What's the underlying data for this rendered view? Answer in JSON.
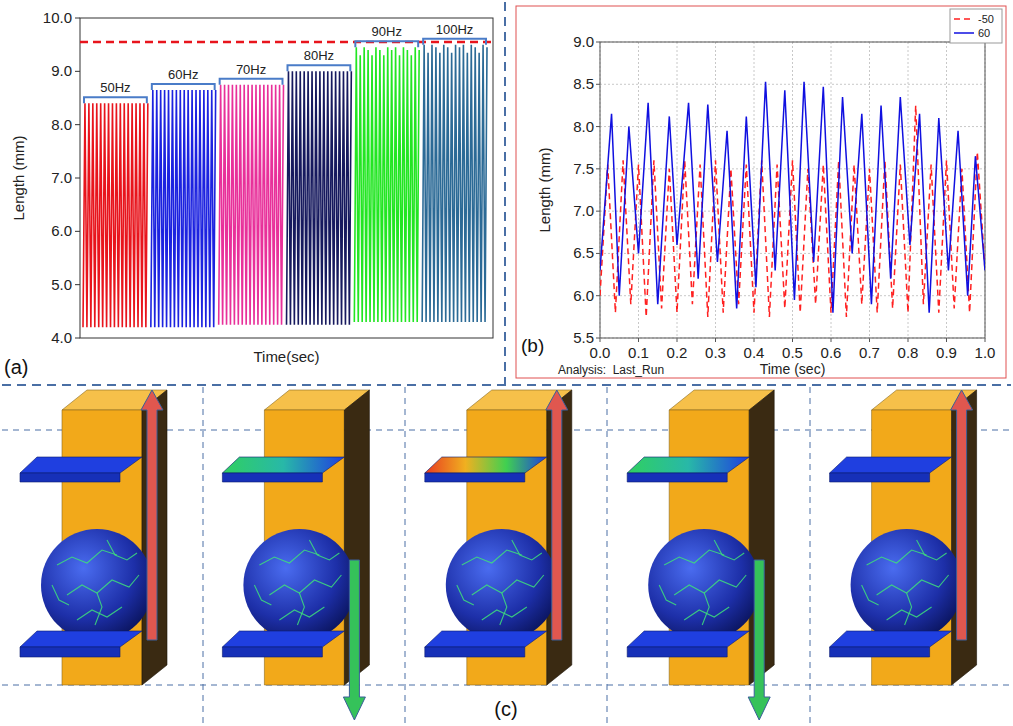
{
  "chart_data": [
    {
      "type": "line",
      "panel_label": "(a)",
      "x_label": "Time(sec)",
      "y_label": "Length (mm)",
      "ylim": [
        4,
        10
      ],
      "yticks": [
        {
          "value": 4,
          "label": "4.0"
        },
        {
          "value": 5,
          "label": "5.0"
        },
        {
          "value": 6,
          "label": "6.0"
        },
        {
          "value": 7,
          "label": "7.0"
        },
        {
          "value": 8,
          "label": "8.0"
        },
        {
          "value": 9,
          "label": "9.0"
        },
        {
          "value": 10,
          "label": "10.0"
        }
      ],
      "tick_labels": "y",
      "grid": false,
      "reference_line": {
        "value": 9.55,
        "color": "#e8141c",
        "line_style": "dashed"
      },
      "series": [
        {
          "name": "50Hz",
          "color": "#e8141c",
          "values": [
            4.2,
            8.4,
            4.2,
            8.4,
            4.2,
            8.4,
            4.2,
            8.4,
            4.2,
            8.4,
            4.2,
            8.4,
            4.2,
            8.4,
            4.2,
            8.4,
            4.2,
            8.4,
            4.2,
            8.4,
            4.2,
            8.4,
            4.2,
            8.4,
            4.2,
            8.4,
            4.2,
            8.4,
            4.2,
            8.4,
            4.2,
            8.4,
            4.2,
            8.4
          ]
        },
        {
          "name": "60Hz",
          "color": "#1c22e0",
          "values": [
            4.2,
            8.65,
            4.2,
            8.65,
            4.2,
            8.65,
            4.2,
            8.65,
            4.2,
            8.65,
            4.2,
            8.65,
            4.2,
            8.65,
            4.2,
            8.65,
            4.2,
            8.65,
            4.2,
            8.65,
            4.2,
            8.65,
            4.2,
            8.65,
            4.2,
            8.65,
            4.2,
            8.65,
            4.2,
            8.65,
            4.2,
            8.65,
            4.2,
            8.65
          ]
        },
        {
          "name": "70Hz",
          "color": "#e8309a",
          "values": [
            4.25,
            8.75,
            4.25,
            8.75,
            4.25,
            8.75,
            4.25,
            8.75,
            4.25,
            8.75,
            4.25,
            8.75,
            4.25,
            8.75,
            4.25,
            8.75,
            4.25,
            8.75,
            4.25,
            8.75,
            4.25,
            8.75,
            4.25,
            8.75,
            4.25,
            8.75,
            4.25,
            8.75,
            4.25,
            8.75,
            4.25,
            8.75,
            4.25,
            8.75
          ]
        },
        {
          "name": "80Hz",
          "color": "#16195e",
          "values": [
            4.25,
            9.0,
            4.25,
            9.0,
            4.25,
            9.0,
            4.25,
            9.0,
            4.25,
            9.0,
            4.25,
            9.0,
            4.25,
            9.0,
            4.25,
            9.0,
            4.25,
            9.0,
            4.25,
            9.0,
            4.25,
            9.0,
            4.25,
            9.0,
            4.25,
            9.0,
            4.25,
            9.0,
            4.25,
            9.0,
            4.25,
            9.0,
            4.25,
            9.0
          ]
        },
        {
          "name": "90Hz",
          "color": "#22e622",
          "values": [
            4.3,
            9.45,
            4.3,
            9.3,
            4.3,
            9.45,
            4.3,
            9.4,
            4.3,
            9.3,
            4.3,
            9.45,
            4.3,
            9.4,
            4.3,
            9.3,
            4.3,
            9.45,
            4.3,
            9.4,
            4.3,
            9.45,
            4.3,
            9.3,
            4.3,
            9.45,
            4.3,
            9.4,
            4.3,
            9.3,
            4.3,
            9.45,
            4.3,
            9.4
          ]
        },
        {
          "name": "100Hz",
          "color": "#2b6a96",
          "values": [
            4.3,
            9.5,
            4.3,
            9.35,
            4.3,
            9.5,
            4.3,
            9.45,
            4.3,
            9.35,
            4.3,
            9.5,
            4.3,
            9.45,
            4.3,
            9.35,
            4.3,
            9.5,
            4.3,
            9.45,
            4.3,
            9.5,
            4.3,
            9.35,
            4.3,
            9.5,
            4.3,
            9.45,
            4.3,
            9.35,
            4.3,
            9.5,
            4.3,
            9.45
          ]
        }
      ]
    },
    {
      "type": "line",
      "panel_label": "(b)",
      "x_label": "Time (sec)",
      "y_label": "Length (mm)",
      "annotations": [
        "Analysis:  Last_Run"
      ],
      "xlim": [
        0,
        1
      ],
      "xticks": [
        {
          "value": 0,
          "label": "0.0"
        },
        0.1,
        0.2,
        0.3,
        0.4,
        0.5,
        0.6,
        0.7,
        0.8,
        0.9,
        {
          "value": 1,
          "label": "1.0"
        }
      ],
      "ylim": [
        5.5,
        9
      ],
      "yticks": [
        5.5,
        {
          "value": 6,
          "label": "6.0"
        },
        6.5,
        {
          "value": 7,
          "label": "7.0"
        },
        7.5,
        {
          "value": 8,
          "label": "8.0"
        },
        8.5,
        {
          "value": 9,
          "label": "9.0"
        }
      ],
      "grid": true,
      "legend": "upper right",
      "series": [
        {
          "name": "-50",
          "color": "#ff2020",
          "line_style": "dashed",
          "x": [
            0,
            0.02,
            0.04,
            0.06,
            0.08,
            0.1,
            0.12,
            0.14,
            0.16,
            0.18,
            0.2,
            0.22,
            0.24,
            0.26,
            0.28,
            0.3,
            0.32,
            0.34,
            0.36,
            0.38,
            0.4,
            0.42,
            0.44,
            0.46,
            0.48,
            0.5,
            0.52,
            0.54,
            0.56,
            0.58,
            0.6,
            0.62,
            0.64,
            0.66,
            0.68,
            0.7,
            0.72,
            0.74,
            0.76,
            0.78,
            0.8,
            0.82,
            0.84,
            0.86,
            0.88,
            0.9,
            0.92,
            0.94,
            0.96,
            0.98,
            1.0
          ],
          "values": [
            6.0,
            7.55,
            5.8,
            7.6,
            5.9,
            7.55,
            5.75,
            7.6,
            5.85,
            7.5,
            5.8,
            7.6,
            5.9,
            7.55,
            5.75,
            7.6,
            5.8,
            7.5,
            5.9,
            7.55,
            5.8,
            7.6,
            5.75,
            7.55,
            5.85,
            7.6,
            5.8,
            7.5,
            5.9,
            7.55,
            5.8,
            7.6,
            5.75,
            7.55,
            5.9,
            7.5,
            5.8,
            7.6,
            5.85,
            7.55,
            5.8,
            8.25,
            5.9,
            7.55,
            5.8,
            7.6,
            5.85,
            7.5,
            5.8,
            7.7,
            6.3
          ]
        },
        {
          "name": "60",
          "color": "#1010e0",
          "line_style": "solid",
          "x": [
            0,
            0.03,
            0.05,
            0.075,
            0.1,
            0.125,
            0.15,
            0.18,
            0.2,
            0.23,
            0.255,
            0.28,
            0.305,
            0.33,
            0.355,
            0.38,
            0.405,
            0.43,
            0.455,
            0.48,
            0.505,
            0.53,
            0.555,
            0.58,
            0.605,
            0.63,
            0.655,
            0.68,
            0.705,
            0.73,
            0.755,
            0.78,
            0.805,
            0.83,
            0.855,
            0.88,
            0.905,
            0.93,
            0.955,
            0.975,
            1.0
          ],
          "values": [
            6.3,
            8.15,
            6.0,
            8.0,
            6.5,
            8.28,
            5.9,
            8.12,
            6.6,
            8.28,
            6.2,
            8.26,
            6.4,
            7.95,
            5.85,
            8.12,
            6.1,
            8.53,
            6.3,
            8.43,
            5.95,
            8.53,
            6.4,
            8.47,
            5.8,
            8.35,
            6.5,
            8.15,
            5.9,
            8.25,
            6.2,
            8.35,
            6.6,
            8.15,
            5.8,
            8.1,
            6.3,
            7.95,
            6.0,
            7.65,
            6.3
          ]
        }
      ]
    }
  ],
  "diagram": {
    "panel_label": "(c)",
    "frames": [
      {
        "arrow": "up",
        "arrow_color": "#e0574f",
        "upper_plate_colors": [
          "#1f3fe0"
        ]
      },
      {
        "arrow": "down",
        "arrow_color": "#35c25a",
        "upper_plate_colors": [
          "#30d060",
          "#28b8a8",
          "#1f3fe0"
        ]
      },
      {
        "arrow": "up",
        "arrow_color": "#e0574f",
        "upper_plate_colors": [
          "#e83a20",
          "#f0b020",
          "#40d050",
          "#1f3fe0"
        ]
      },
      {
        "arrow": "down",
        "arrow_color": "#35c25a",
        "upper_plate_colors": [
          "#30d060",
          "#28b8a8",
          "#1f3fe0"
        ]
      },
      {
        "arrow": "up",
        "arrow_color": "#e0574f",
        "upper_plate_colors": [
          "#1f3fe0"
        ]
      }
    ]
  }
}
